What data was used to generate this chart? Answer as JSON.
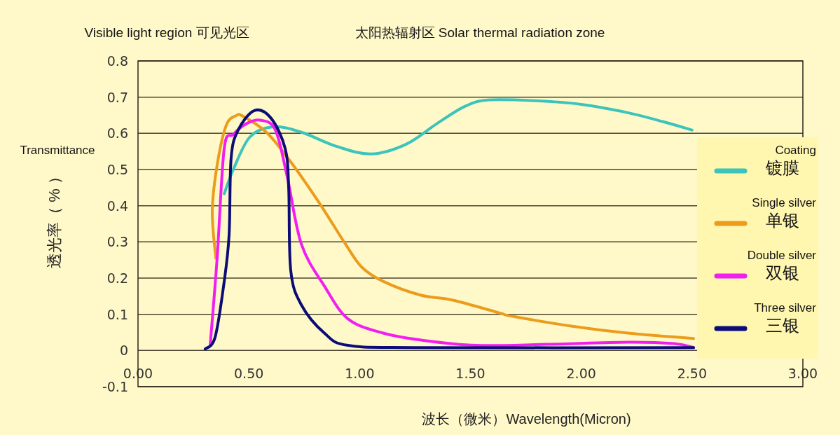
{
  "chart_data": {
    "type": "line",
    "xlabel": "波长（微米）Wavelength(Micron)",
    "ylabel": "透光率（ % ）",
    "annotations": [
      "Visible light region 可见光区",
      "太阳热辐射区 Solar thermal radiation zone",
      "Transmittance"
    ],
    "xlim": [
      0,
      3
    ],
    "ylim": [
      -0.1,
      0.8
    ],
    "xticks": [
      {
        "value": 0,
        "label": "0.00"
      },
      {
        "value": 0.5,
        "label": "0.50"
      },
      {
        "value": 1,
        "label": "1.00"
      },
      {
        "value": 1.5,
        "label": "1.50"
      },
      {
        "value": 2,
        "label": "2.00"
      },
      {
        "value": 2.5,
        "label": "2.50"
      },
      {
        "value": 3,
        "label": "3.00"
      }
    ],
    "yticks": [
      -0.1,
      0,
      0.1,
      0.2,
      0.3,
      0.4,
      0.5,
      0.6,
      0.7,
      0.8
    ],
    "grid": "y",
    "legend": "right",
    "marker": "none",
    "line_style": "solid",
    "series": [
      {
        "name": "Coating\n镀膜",
        "color": "#3cc4bc",
        "x": [
          0.389,
          0.43,
          0.505,
          0.61,
          0.737,
          0.895,
          1.053,
          1.21,
          1.347,
          1.473,
          1.58,
          1.79,
          2.0,
          2.21,
          2.37,
          2.5
        ],
        "values": [
          0.433,
          0.5,
          0.59,
          0.618,
          0.603,
          0.564,
          0.543,
          0.57,
          0.626,
          0.674,
          0.692,
          0.69,
          0.68,
          0.657,
          0.632,
          0.609
        ]
      },
      {
        "name": "Single silver\n单银",
        "color": "#eb9c1c",
        "x": [
          0.351,
          0.335,
          0.357,
          0.398,
          0.443,
          0.474,
          0.579,
          0.683,
          0.81,
          0.936,
          1.01,
          1.106,
          1.274,
          1.42,
          1.63,
          1.685,
          1.948,
          2.21,
          2.507
        ],
        "values": [
          0.255,
          0.384,
          0.512,
          0.622,
          0.649,
          0.647,
          0.603,
          0.526,
          0.415,
          0.294,
          0.23,
          0.191,
          0.153,
          0.139,
          0.104,
          0.095,
          0.068,
          0.048,
          0.033
        ]
      },
      {
        "name": "Double silver\n双银",
        "color": "#f21ef0",
        "x": [
          0.326,
          0.357,
          0.389,
          0.43,
          0.493,
          0.556,
          0.62,
          0.673,
          0.737,
          0.841,
          0.948,
          1.106,
          1.274,
          1.527,
          1.843,
          2.21,
          2.42,
          2.507
        ],
        "values": [
          0.017,
          0.255,
          0.558,
          0.597,
          0.628,
          0.636,
          0.609,
          0.481,
          0.294,
          0.178,
          0.087,
          0.048,
          0.029,
          0.014,
          0.017,
          0.023,
          0.019,
          0.008
        ]
      },
      {
        "name": "Three silver\n三银",
        "color": "#0c0c78",
        "x": [
          0.303,
          0.348,
          0.389,
          0.411,
          0.42,
          0.452,
          0.525,
          0.6,
          0.664,
          0.68,
          0.689,
          0.737,
          0.841,
          0.948,
          1.274,
          2.507
        ],
        "values": [
          0.004,
          0.037,
          0.191,
          0.32,
          0.531,
          0.609,
          0.663,
          0.642,
          0.558,
          0.448,
          0.222,
          0.126,
          0.048,
          0.014,
          0.008,
          0.008
        ]
      }
    ]
  }
}
